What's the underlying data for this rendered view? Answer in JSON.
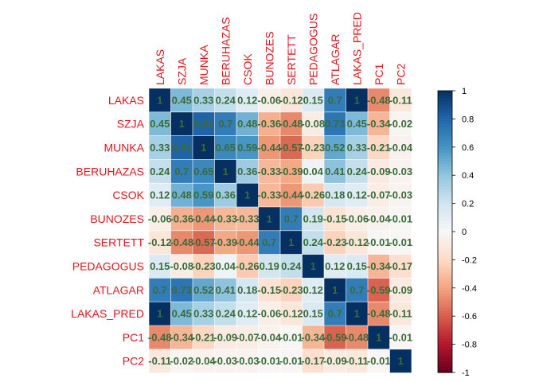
{
  "chart_data": {
    "type": "heatmap",
    "variables": [
      "LAKAS",
      "SZJA",
      "MUNKA",
      "BERUHAZAS",
      "CSOK",
      "BUNOZES",
      "SERTETT",
      "PEDAGOGUS",
      "ATLAGAR",
      "LAKAS_PRED",
      "PC1",
      "PC2"
    ],
    "cell_labels": [
      [
        "1",
        "0.45",
        "0.33",
        "0.24",
        "0.12",
        "-0.06",
        "-0.12",
        "0.15",
        "0.7",
        "1",
        "-0.48",
        "-0.11"
      ],
      [
        "0.45",
        "1",
        "0.81",
        "0.7",
        "0.48",
        "-0.36",
        "-0.48",
        "-0.08",
        "0.73",
        "0.45",
        "-0.34",
        "-0.02"
      ],
      [
        "0.33",
        "0.81",
        "1",
        "0.65",
        "0.59",
        "-0.44",
        "-0.57",
        "-0.23",
        "0.52",
        "0.33",
        "-0.21",
        "-0.04"
      ],
      [
        "0.24",
        "0.7",
        "0.65",
        "1",
        "0.36",
        "-0.33",
        "-0.39",
        "0.04",
        "0.41",
        "0.24",
        "-0.09",
        "-0.03"
      ],
      [
        "0.12",
        "0.48",
        "0.59",
        "0.36",
        "1",
        "-0.33",
        "-0.44",
        "-0.26",
        "0.18",
        "0.12",
        "-0.07",
        "-0.03"
      ],
      [
        "-0.06",
        "-0.36",
        "-0.44",
        "-0.33",
        "-0.33",
        "1",
        "0.7",
        "0.19",
        "-0.15",
        "-0.06",
        "-0.04",
        "-0.01"
      ],
      [
        "-0.12",
        "-0.48",
        "-0.57",
        "-0.39",
        "-0.44",
        "0.7",
        "1",
        "0.24",
        "-0.23",
        "-0.12",
        "-0.01",
        "-0.01"
      ],
      [
        "0.15",
        "-0.08",
        "-0.23",
        "0.04",
        "-0.26",
        "0.19",
        "0.24",
        "1",
        "0.12",
        "0.15",
        "-0.34",
        "-0.17"
      ],
      [
        "0.7",
        "0.73",
        "0.52",
        "0.41",
        "0.18",
        "-0.15",
        "-0.23",
        "0.12",
        "1",
        "0.7",
        "-0.59",
        "-0.09"
      ],
      [
        "1",
        "0.45",
        "0.33",
        "0.24",
        "0.12",
        "-0.06",
        "-0.12",
        "0.15",
        "0.7",
        "1",
        "-0.48",
        "-0.11"
      ],
      [
        "-0.48",
        "-0.34",
        "-0.21",
        "-0.09",
        "-0.07",
        "-0.04",
        "-0.01",
        "-0.34",
        "-0.59",
        "-0.48",
        "1",
        "-0.01"
      ],
      [
        "-0.11",
        "-0.02",
        "-0.04",
        "-0.03",
        "-0.03",
        "-0.01",
        "-0.01",
        "-0.17",
        "-0.09",
        "-0.11",
        "-0.01",
        "1"
      ]
    ],
    "range": [
      -1,
      1
    ],
    "colorbar_ticks": [
      "1",
      "0.8",
      "0.6",
      "0.4",
      "0.2",
      "0",
      "-0.2",
      "-0.4",
      "-0.6",
      "-0.8",
      "-1"
    ],
    "colors": {
      "label": "#e8141e",
      "value_text": "#3b6b3b",
      "low": "#67001f",
      "mid": "#f7f7f7",
      "high": "#053061"
    }
  }
}
